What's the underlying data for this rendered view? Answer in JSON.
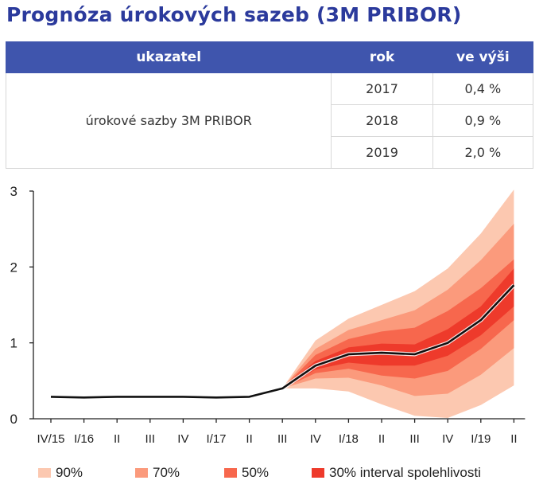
{
  "title": "Prognóza úrokových sazeb (3M PRIBOR)",
  "table": {
    "headers": [
      "ukazatel",
      "rok",
      "ve výši"
    ],
    "indicator": "úrokové sazby 3M PRIBOR",
    "rows": [
      {
        "year": "2017",
        "value": "0,4 %"
      },
      {
        "year": "2018",
        "value": "0,9 %"
      },
      {
        "year": "2019",
        "value": "2,0 %"
      }
    ]
  },
  "colors": {
    "title": "#2b3a9c",
    "header_bg": "#3f55ad",
    "band_90": "#fcc8b0",
    "band_70": "#fb9a7c",
    "band_50": "#f7674d",
    "band_30": "#ee3a2b",
    "line": "#111111"
  },
  "chart_data": {
    "type": "area",
    "title": "",
    "xlabel": "",
    "ylabel": "",
    "ylim": [
      0,
      3
    ],
    "yticks": [
      "0",
      "1",
      "2",
      "3"
    ],
    "categories": [
      "IV/15",
      "I/16",
      "II",
      "III",
      "IV",
      "I/17",
      "II",
      "III",
      "IV",
      "I/18",
      "II",
      "III",
      "IV",
      "I/19",
      "II"
    ],
    "grid": false,
    "legend_position": "bottom",
    "series": [
      {
        "values": [
          0.29,
          0.28,
          0.29,
          0.29,
          0.29,
          0.28,
          0.29,
          0.4,
          0.7,
          0.85,
          0.87,
          0.85,
          1.0,
          1.3,
          1.76
        ]
      }
    ],
    "fan_forecast_start_index": 7,
    "fan_bands": [
      {
        "name": "90%",
        "lower": [
          0.4,
          0.4,
          0.36,
          0.19,
          0.04,
          0.01,
          0.18,
          0.44
        ],
        "upper": [
          0.4,
          1.03,
          1.32,
          1.5,
          1.68,
          1.98,
          2.44,
          3.02
        ]
      },
      {
        "name": "70%",
        "lower": [
          0.4,
          0.53,
          0.54,
          0.44,
          0.3,
          0.33,
          0.58,
          0.93
        ],
        "upper": [
          0.4,
          0.92,
          1.17,
          1.3,
          1.43,
          1.7,
          2.09,
          2.57
        ]
      },
      {
        "name": "50%",
        "lower": [
          0.4,
          0.6,
          0.66,
          0.57,
          0.53,
          0.63,
          0.92,
          1.3
        ],
        "upper": [
          0.4,
          0.84,
          1.05,
          1.15,
          1.2,
          1.42,
          1.72,
          2.1
        ]
      },
      {
        "name": "30% interval spolehlivosti",
        "lower": [
          0.4,
          0.65,
          0.74,
          0.7,
          0.7,
          0.83,
          1.1,
          1.48
        ],
        "upper": [
          0.4,
          0.76,
          0.94,
          0.99,
          0.98,
          1.18,
          1.48,
          1.98
        ]
      }
    ]
  }
}
